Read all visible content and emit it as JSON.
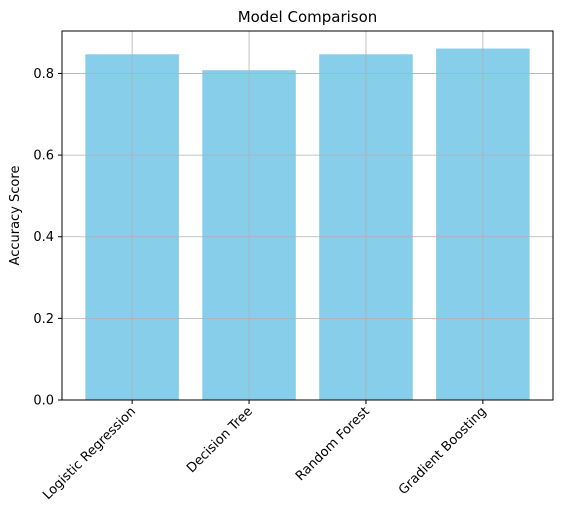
{
  "chart_data": {
    "type": "bar",
    "title": "Model Comparison",
    "xlabel": "",
    "ylabel": "Accuracy Score",
    "categories": [
      "Logistic Regression",
      "Decision Tree",
      "Random Forest",
      "Gradient Boosting"
    ],
    "values": [
      0.847,
      0.808,
      0.847,
      0.861
    ],
    "ylim": [
      0,
      0.904
    ],
    "yticks": [
      "0.0",
      "0.2",
      "0.4",
      "0.6",
      "0.8"
    ],
    "ytick_values": [
      0,
      0.2,
      0.4,
      0.6,
      0.8
    ],
    "grid": true,
    "bar_color": "#87ceeb",
    "grid_color": "#b0b0b0",
    "xtick_rotation_deg": 45
  }
}
